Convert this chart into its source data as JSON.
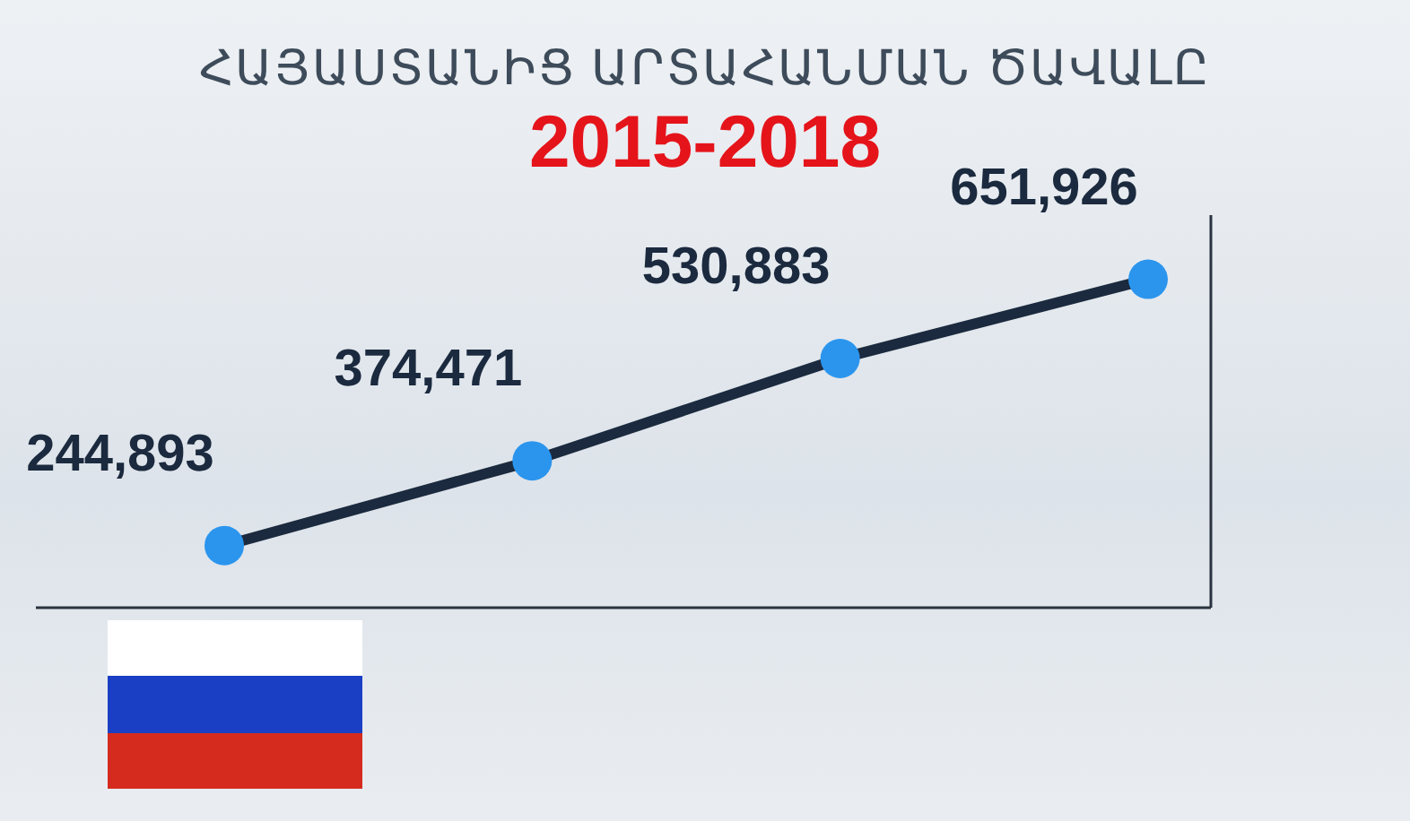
{
  "chart_data": {
    "type": "line",
    "title": "ՀԱՅԱՍՏԱՆԻՑ ԱՐՏԱՀԱՆՄԱՆ ԾԱՎԱԼԸ",
    "subtitle": "2015-2018",
    "categories": [
      null,
      null,
      null,
      null
    ],
    "series": [
      {
        "color": "#1b2a3e",
        "colors": [
          "#2b95ee",
          "#2b95ee",
          "#2b95ee",
          "#2b95ee"
        ],
        "values": [
          244893,
          374471,
          530883,
          651926
        ],
        "value_labels": [
          "244,893",
          "374,471",
          "530,883",
          "651,926"
        ]
      }
    ],
    "marker": "circle"
  }
}
